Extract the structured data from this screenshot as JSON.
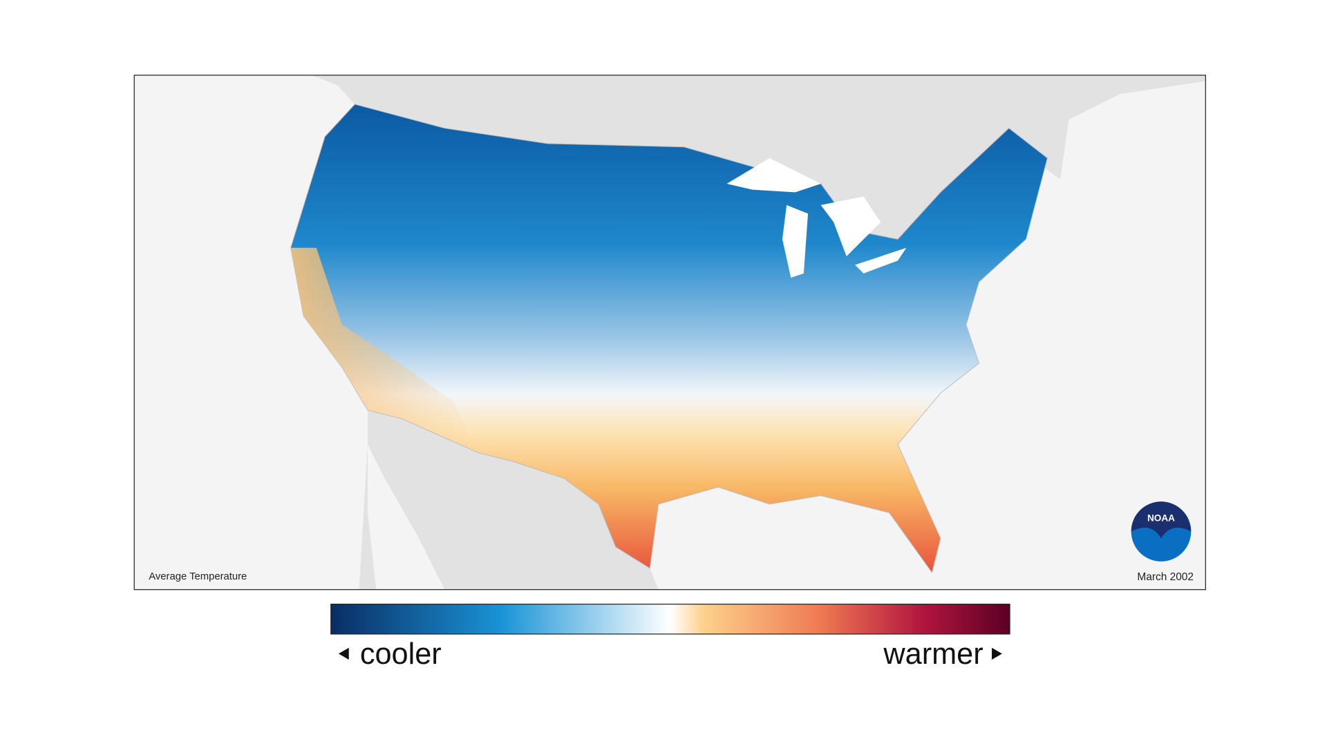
{
  "map": {
    "label": "Average Temperature",
    "date": "March 2002",
    "logo": "NOAA"
  },
  "legend": {
    "low": "cooler",
    "high": "warmer"
  }
}
